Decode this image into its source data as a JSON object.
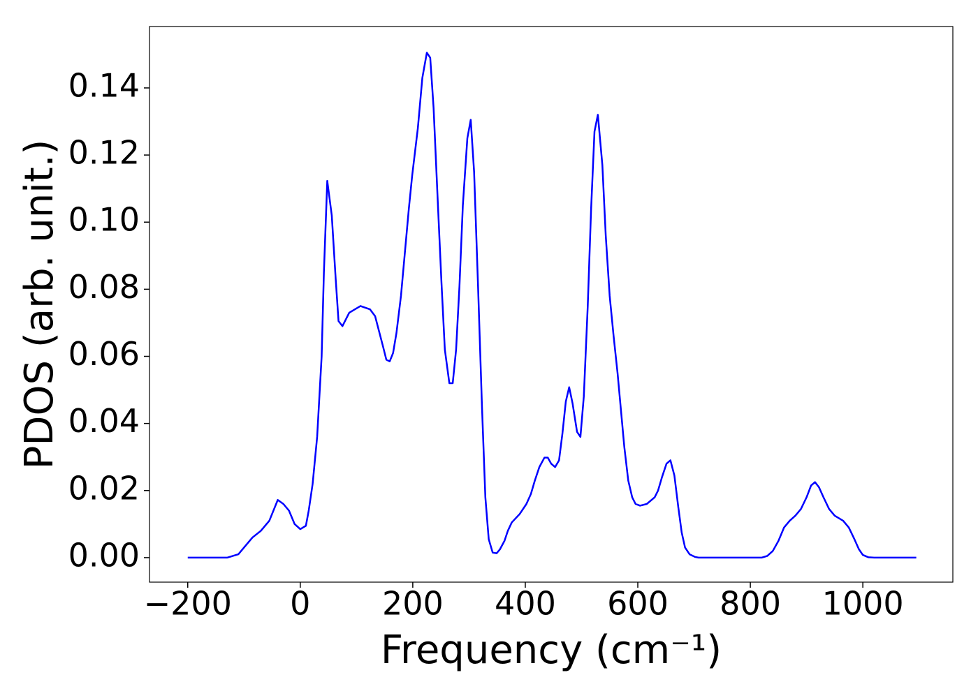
{
  "chart_data": {
    "type": "line",
    "xlabel": "Frequency (cm⁻¹)",
    "ylabel": "PDOS (arb. unit.)",
    "color": "#0000ff",
    "x": [
      -200,
      -130,
      -110,
      -100,
      -85,
      -70,
      -55,
      -40,
      -30,
      -20,
      -10,
      0,
      10,
      15,
      22,
      30,
      38,
      42,
      48,
      56,
      63,
      68,
      75,
      87,
      107,
      124,
      133,
      147,
      153,
      159,
      165,
      171,
      179,
      193,
      199,
      209,
      217,
      225,
      231,
      237,
      245,
      251,
      257,
      265,
      271,
      277,
      283,
      289,
      297,
      303,
      309,
      316,
      323,
      329,
      335,
      342,
      349,
      355,
      363,
      369,
      376,
      390,
      402,
      410,
      417,
      425,
      434,
      440,
      446,
      453,
      460,
      466,
      472,
      478,
      484,
      492,
      498,
      504,
      511,
      517,
      523,
      529,
      537,
      543,
      550,
      557,
      564,
      570,
      576,
      583,
      590,
      596,
      604,
      616,
      630,
      636,
      643,
      651,
      658,
      665,
      672,
      678,
      684,
      692,
      702,
      708,
      820,
      830,
      840,
      850,
      860,
      870,
      880,
      890,
      900,
      908,
      915,
      922,
      930,
      940,
      950,
      965,
      975,
      985,
      993,
      1000,
      1010,
      1020,
      1095
    ],
    "values": [
      0,
      0,
      0.001,
      0.003,
      0.006,
      0.008,
      0.011,
      0.0172,
      0.016,
      0.014,
      0.01,
      0.0085,
      0.0095,
      0.014,
      0.022,
      0.036,
      0.06,
      0.085,
      0.1123,
      0.102,
      0.083,
      0.0705,
      0.069,
      0.073,
      0.075,
      0.074,
      0.072,
      0.063,
      0.059,
      0.0585,
      0.061,
      0.067,
      0.078,
      0.104,
      0.114,
      0.128,
      0.143,
      0.1505,
      0.149,
      0.134,
      0.104,
      0.082,
      0.062,
      0.052,
      0.052,
      0.062,
      0.081,
      0.105,
      0.125,
      0.1305,
      0.115,
      0.081,
      0.045,
      0.018,
      0.0055,
      0.0015,
      0.0013,
      0.0025,
      0.005,
      0.008,
      0.0105,
      0.013,
      0.016,
      0.019,
      0.023,
      0.027,
      0.0298,
      0.0298,
      0.028,
      0.027,
      0.029,
      0.037,
      0.0465,
      0.0508,
      0.046,
      0.0375,
      0.036,
      0.048,
      0.075,
      0.104,
      0.127,
      0.132,
      0.117,
      0.096,
      0.078,
      0.066,
      0.055,
      0.044,
      0.033,
      0.023,
      0.018,
      0.016,
      0.0155,
      0.016,
      0.018,
      0.02,
      0.024,
      0.028,
      0.029,
      0.0245,
      0.015,
      0.0075,
      0.003,
      0.001,
      0.0002,
      0,
      0,
      0.0005,
      0.002,
      0.005,
      0.009,
      0.011,
      0.0125,
      0.0145,
      0.018,
      0.0215,
      0.0225,
      0.021,
      0.018,
      0.0145,
      0.0125,
      0.011,
      0.009,
      0.0055,
      0.0025,
      0.0008,
      0.0001,
      0,
      0
    ],
    "xlim": [
      -268,
      1160
    ],
    "ylim": [
      -0.0073,
      0.1583
    ],
    "xticks": [
      {
        "value": -200,
        "label": "−200"
      },
      0,
      200,
      400,
      600,
      800,
      1000
    ],
    "yticks": [
      {
        "value": 0,
        "label": "0.00"
      },
      {
        "value": 0.02,
        "label": "0.02"
      },
      {
        "value": 0.04,
        "label": "0.04"
      },
      {
        "value": 0.06,
        "label": "0.06"
      },
      {
        "value": 0.08,
        "label": "0.08"
      },
      {
        "value": 0.1,
        "label": "0.10"
      },
      {
        "value": 0.12,
        "label": "0.12"
      },
      {
        "value": 0.14,
        "label": "0.14"
      }
    ]
  }
}
